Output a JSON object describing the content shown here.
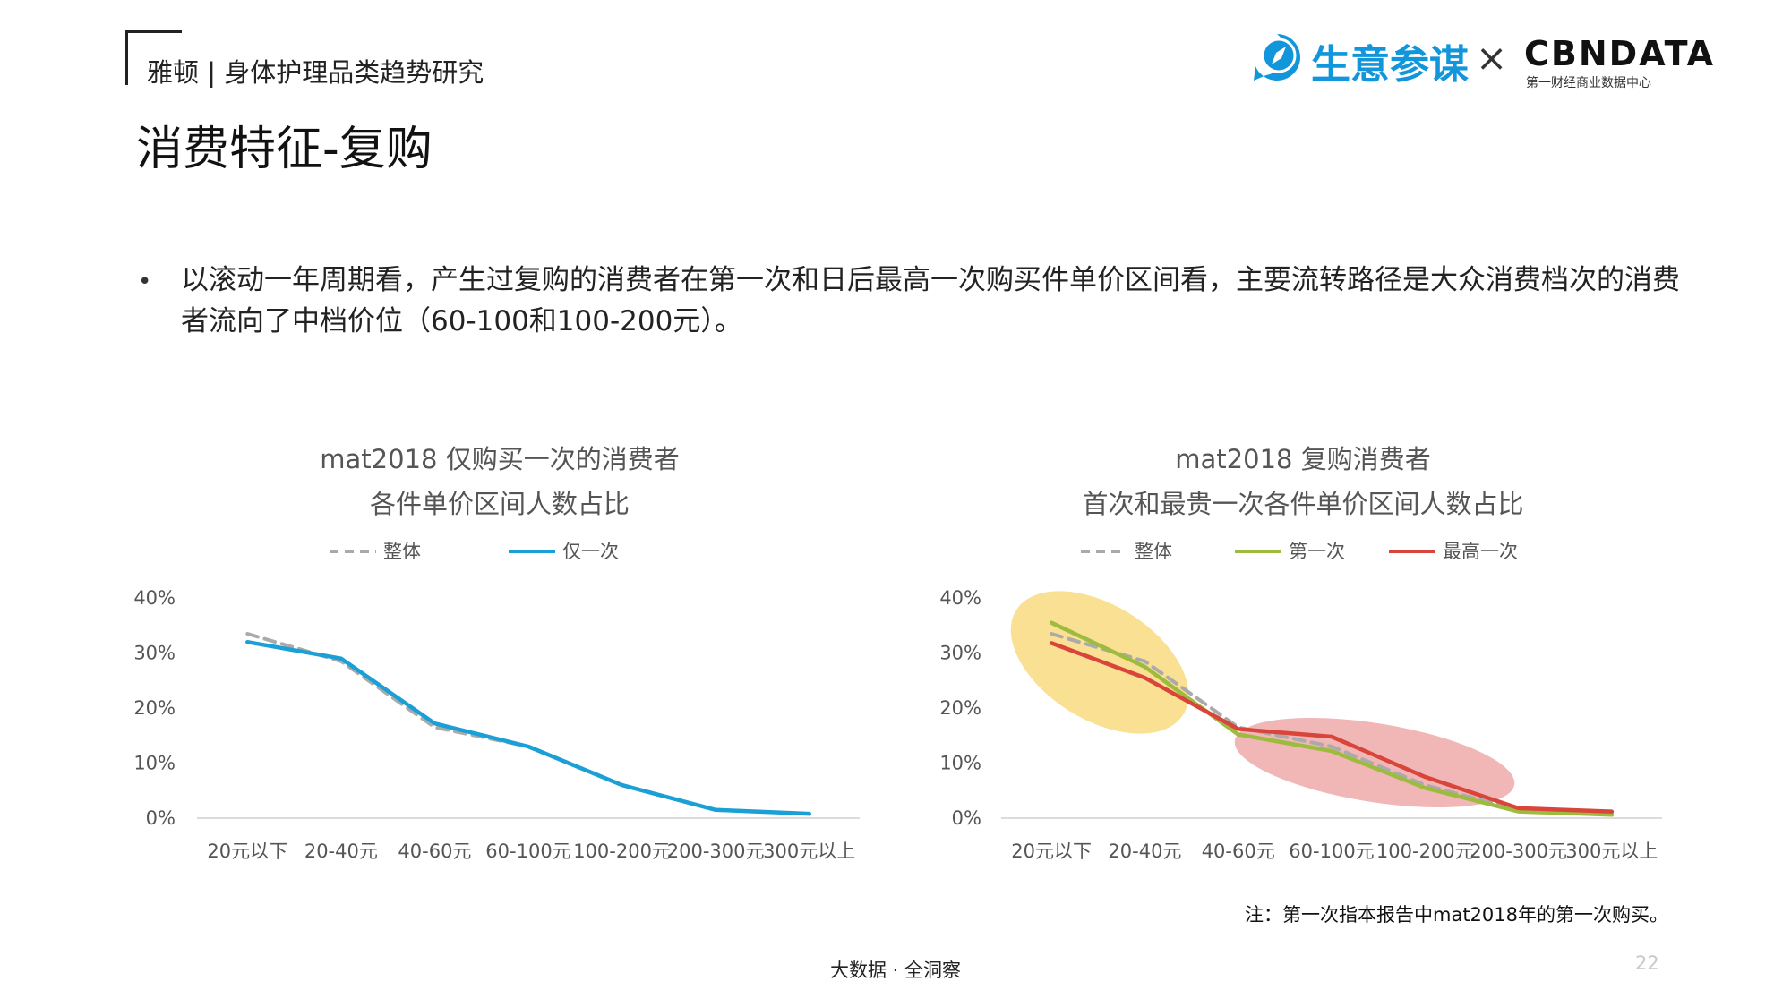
{
  "header": {
    "brand": "雅顿 | 身体护理品类趋势研究",
    "title": "消费特征-复购",
    "logo_left": "生意参谋",
    "logo_times": "×",
    "logo_right": "CBNDATA",
    "logo_right_sub": "第一财经商业数据中心"
  },
  "bullet": {
    "text": "以滚动一年周期看，产生过复购的消费者在第一次和日后最高一次购买件单价区间看，主要流转路径是大众消费档次的消费者流向了中档价位（60-100和100-200元）。"
  },
  "colors": {
    "overall": "#aaaaaa",
    "once": "#1a9fd6",
    "first": "#9dbb3e",
    "highest": "#d9453b",
    "highlight_yellow": "#f7d56d",
    "highlight_red": "#ea8f8f"
  },
  "chart_data": [
    {
      "type": "line",
      "title": "mat2018 仅购买一次的消费者",
      "subtitle": "各件单价区间人数占比",
      "categories": [
        "20元以下",
        "20-40元",
        "40-60元",
        "60-100元",
        "100-200元",
        "200-300元",
        "300元以上"
      ],
      "ylim": [
        0,
        0.4
      ],
      "yticks": [
        "0%",
        "10%",
        "20%",
        "30%",
        "40%"
      ],
      "legend_position": "top",
      "grid": false,
      "series": [
        {
          "name": "整体",
          "style": "dashed",
          "color_key": "overall",
          "values": [
            0.335,
            0.285,
            0.165,
            0.13,
            0.06,
            0.015,
            0.008
          ]
        },
        {
          "name": "仅一次",
          "style": "solid",
          "color_key": "once",
          "values": [
            0.32,
            0.29,
            0.172,
            0.13,
            0.06,
            0.015,
            0.008
          ]
        }
      ]
    },
    {
      "type": "line",
      "title": "mat2018 复购消费者",
      "subtitle": "首次和最贵一次各件单价区间人数占比",
      "categories": [
        "20元以下",
        "20-40元",
        "40-60元",
        "60-100元",
        "100-200元",
        "200-300元",
        "300元以上"
      ],
      "ylim": [
        0,
        0.4
      ],
      "yticks": [
        "0%",
        "10%",
        "20%",
        "30%",
        "40%"
      ],
      "legend_position": "top",
      "grid": false,
      "series": [
        {
          "name": "整体",
          "style": "dashed",
          "color_key": "overall",
          "values": [
            0.335,
            0.285,
            0.165,
            0.13,
            0.06,
            0.015,
            0.008
          ]
        },
        {
          "name": "第一次",
          "style": "solid",
          "color_key": "first",
          "values": [
            0.355,
            0.275,
            0.152,
            0.122,
            0.055,
            0.012,
            0.006
          ]
        },
        {
          "name": "最高一次",
          "style": "solid",
          "color_key": "highest",
          "values": [
            0.318,
            0.255,
            0.162,
            0.148,
            0.075,
            0.018,
            0.012
          ]
        }
      ]
    }
  ],
  "note": "注：第一次指本报告中mat2018年的第一次购买。",
  "footer": "大数据 · 全洞察",
  "page_number": "22"
}
